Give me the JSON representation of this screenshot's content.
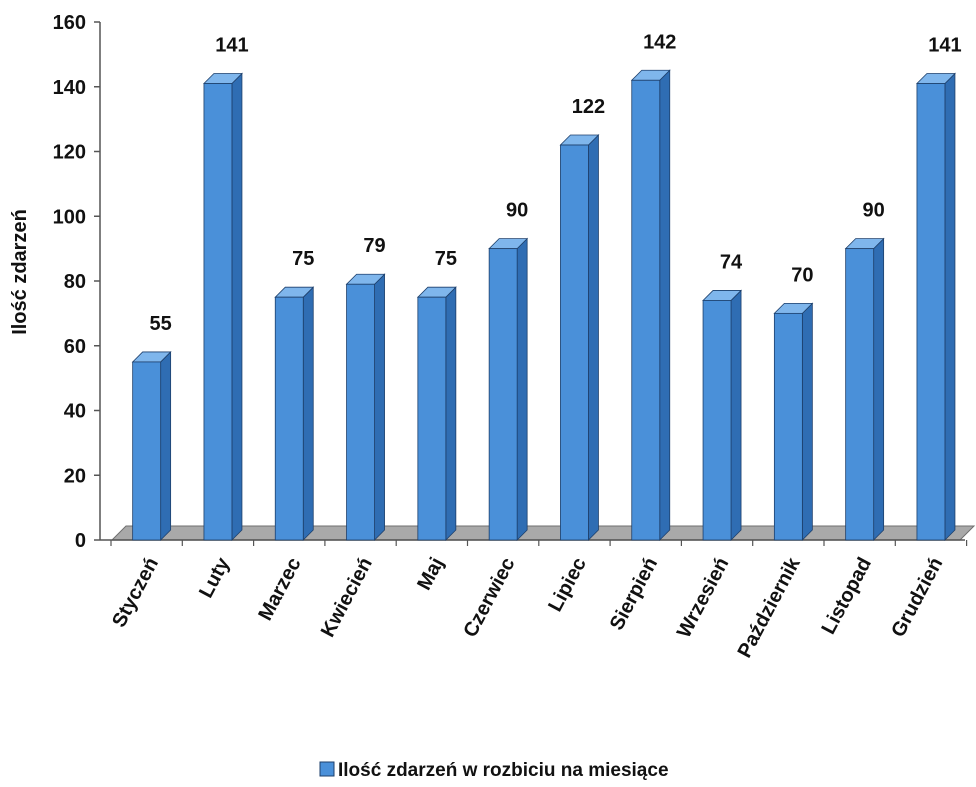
{
  "chart_data": {
    "type": "bar",
    "categories": [
      "Styczeń",
      "Luty",
      "Marzec",
      "Kwiecień",
      "Maj",
      "Czerwiec",
      "Lipiec",
      "Sierpień",
      "Wrzesień",
      "Październik",
      "Listopad",
      "Grudzień"
    ],
    "series": [
      {
        "name": "Ilość zdarzeń w rozbiciu na miesiące",
        "values": [
          55,
          141,
          75,
          79,
          75,
          90,
          122,
          142,
          74,
          70,
          90,
          141
        ]
      }
    ],
    "ylabel": "Ilość zdarzeń",
    "xlabel": "",
    "ylim": [
      0,
      160
    ],
    "yticks": [
      0,
      20,
      40,
      60,
      80,
      100,
      120,
      140,
      160
    ],
    "legend": "bottom-center",
    "grid": false,
    "style": "3d-bar",
    "colors": {
      "bar_front": "#4a90d9",
      "bar_side": "#2f6db3",
      "bar_top": "#7fb6ec",
      "floor": "#a9a9a9",
      "axis": "#555555"
    }
  }
}
